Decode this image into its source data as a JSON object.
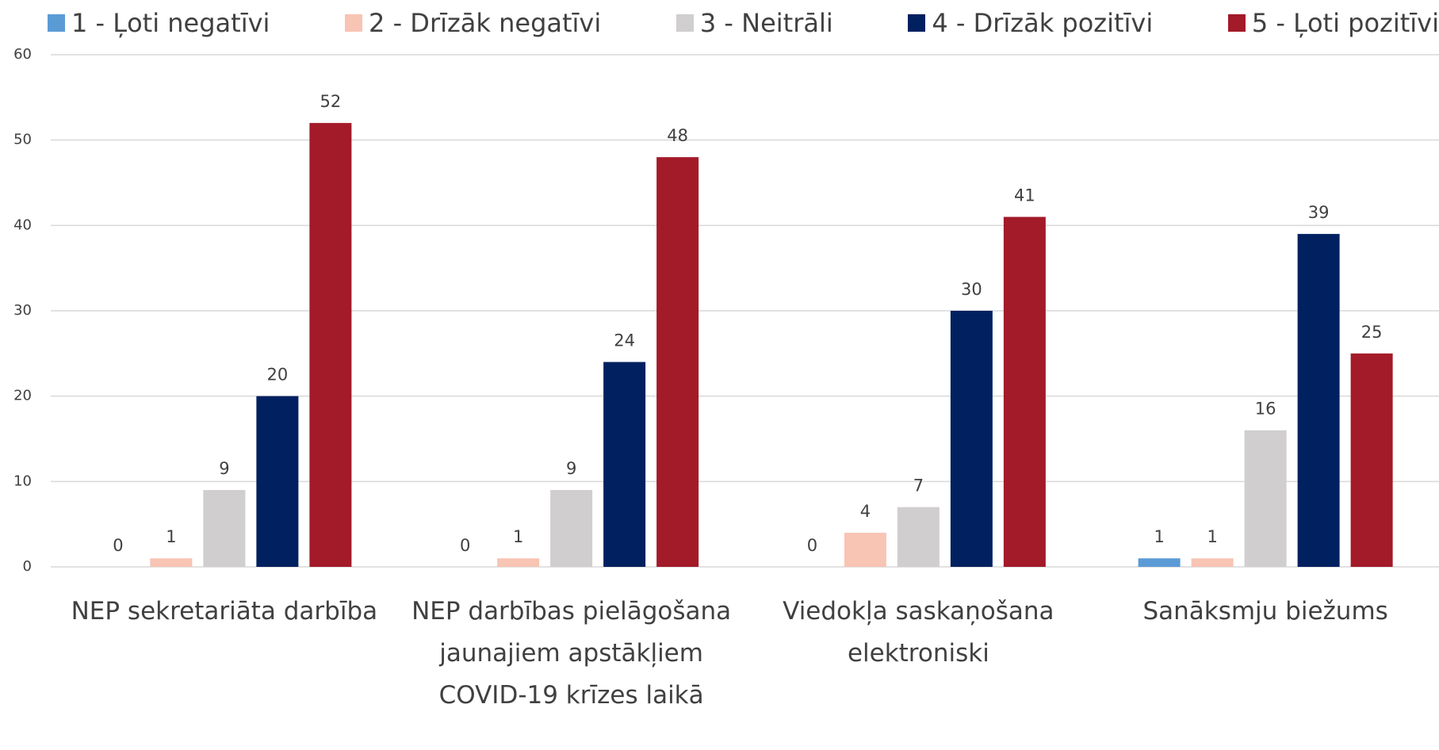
{
  "chart_data": {
    "type": "bar",
    "categories": [
      "NEP sekretariāta darbība",
      "NEP darbības pielāgošana jaunajiem apstākļiem COVID-19 krīzes laikā",
      "Viedokļa saskaņošana elektroniski",
      "Sanāksmju biežums"
    ],
    "series": [
      {
        "name": "1 - Ļoti negatīvi",
        "color": "#5b9bd5",
        "values": [
          0,
          0,
          0,
          1
        ]
      },
      {
        "name": "2 - Drīzāk negatīvi",
        "color": "#f8c4b4",
        "values": [
          1,
          1,
          4,
          1
        ]
      },
      {
        "name": "3 - Neitrāli",
        "color": "#d0cece",
        "values": [
          9,
          9,
          7,
          16
        ]
      },
      {
        "name": "4 - Drīzāk pozitīvi",
        "color": "#002060",
        "values": [
          20,
          24,
          30,
          39
        ]
      },
      {
        "name": "5 - Ļoti pozitīvi",
        "color": "#a31a29",
        "values": [
          52,
          48,
          41,
          25
        ]
      }
    ],
    "ylim": [
      0,
      60
    ],
    "yticks": [
      0,
      10,
      20,
      30,
      40,
      50,
      60
    ],
    "grid": true,
    "legend": "top"
  }
}
